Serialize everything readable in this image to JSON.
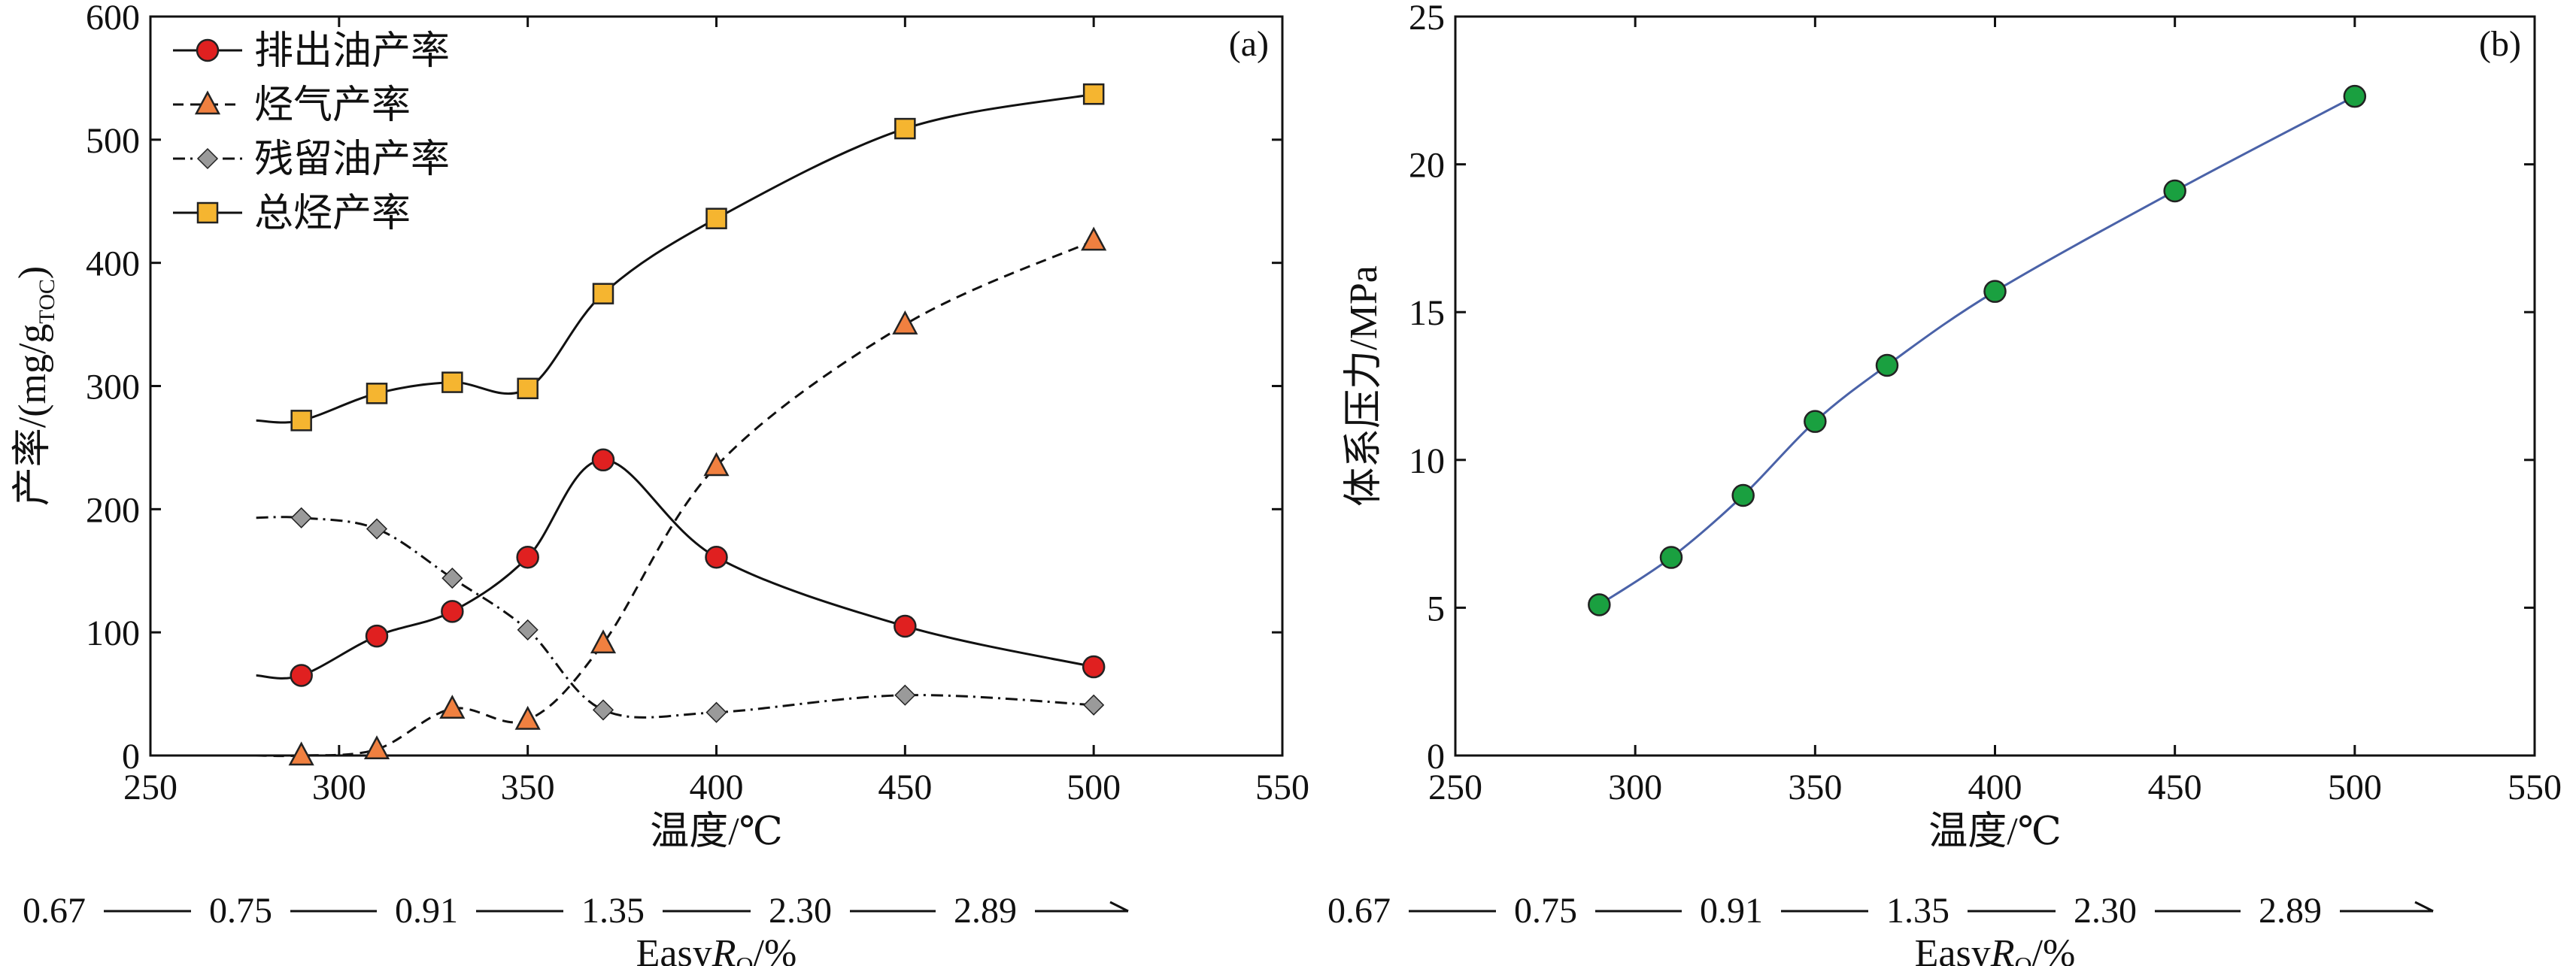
{
  "chart_data": [
    {
      "type": "line",
      "panel_label": "(a)",
      "xlabel": "温度/℃",
      "ylabel": "产率/(mg/g",
      "ylabel_subscript": "TOC",
      "ylabel_suffix": ")",
      "xlim": [
        250,
        550
      ],
      "ylim": [
        0,
        600
      ],
      "xticks": [
        250,
        300,
        350,
        400,
        450,
        500,
        550
      ],
      "yticks": [
        0,
        100,
        200,
        300,
        400,
        500,
        600
      ],
      "legend_position": "top-left",
      "x": [
        290,
        310,
        330,
        350,
        370,
        400,
        450,
        500
      ],
      "series": [
        {
          "name": "排出油产率",
          "marker": "circle",
          "line": "solid",
          "color": "#e02020",
          "values": [
            65,
            97,
            117,
            161,
            240,
            161,
            105,
            72
          ]
        },
        {
          "name": "烃气产率",
          "marker": "triangle",
          "line": "dashed",
          "color": "#f08040",
          "values": [
            0,
            5,
            38,
            29,
            91,
            235,
            350,
            418
          ]
        },
        {
          "name": "残留油产率",
          "marker": "diamond",
          "line": "dashdot",
          "color": "#9a9a9a",
          "values": [
            193,
            184,
            144,
            102,
            37,
            35,
            49,
            41
          ]
        },
        {
          "name": "总烃产率",
          "marker": "square",
          "line": "solid",
          "color": "#f5b530",
          "values": [
            272,
            294,
            303,
            298,
            375,
            436,
            509,
            537
          ]
        }
      ],
      "secondary_axis": {
        "label_prefix": "Easy",
        "label_var": "R",
        "label_sub": "O",
        "label_suffix": "/%",
        "values": [
          "0.67",
          "0.75",
          "0.91",
          "1.35",
          "2.30",
          "2.89"
        ]
      }
    },
    {
      "type": "line",
      "panel_label": "(b)",
      "xlabel": "温度/℃",
      "ylabel": "体系压力/MPa",
      "xlim": [
        250,
        550
      ],
      "ylim": [
        0,
        25
      ],
      "xticks": [
        250,
        300,
        350,
        400,
        450,
        500,
        550
      ],
      "yticks": [
        0,
        5,
        10,
        15,
        20,
        25
      ],
      "x": [
        290,
        310,
        330,
        350,
        370,
        400,
        450,
        500
      ],
      "series": [
        {
          "marker": "circle",
          "line": "solid",
          "color": "#1aa040",
          "line_color": "#4a62a8",
          "values": [
            5.1,
            6.7,
            8.8,
            11.3,
            13.2,
            15.7,
            19.1,
            22.3
          ]
        }
      ],
      "secondary_axis": {
        "label_prefix": "Easy",
        "label_var": "R",
        "label_sub": "O",
        "label_suffix": "/%",
        "values": [
          "0.67",
          "0.75",
          "0.91",
          "1.35",
          "2.30",
          "2.89"
        ]
      }
    }
  ]
}
